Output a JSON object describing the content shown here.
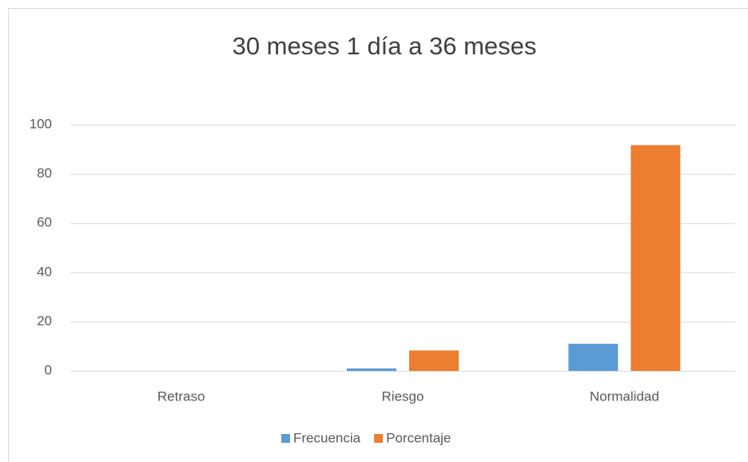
{
  "chart_data": {
    "type": "bar",
    "title": "30 meses 1 día a 36 meses",
    "categories": [
      "Retraso",
      "Riesgo",
      "Normalidad"
    ],
    "series": [
      {
        "name": "Frecuencia",
        "color": "#5b9bd5",
        "values": [
          0,
          1,
          11
        ]
      },
      {
        "name": "Porcentaje",
        "color": "#ed7d31",
        "values": [
          0,
          8.3,
          91.7
        ]
      }
    ],
    "ylim": [
      0,
      100
    ],
    "yticks": [
      0,
      20,
      40,
      60,
      80,
      100
    ],
    "grid": true,
    "legend": "bottom"
  }
}
